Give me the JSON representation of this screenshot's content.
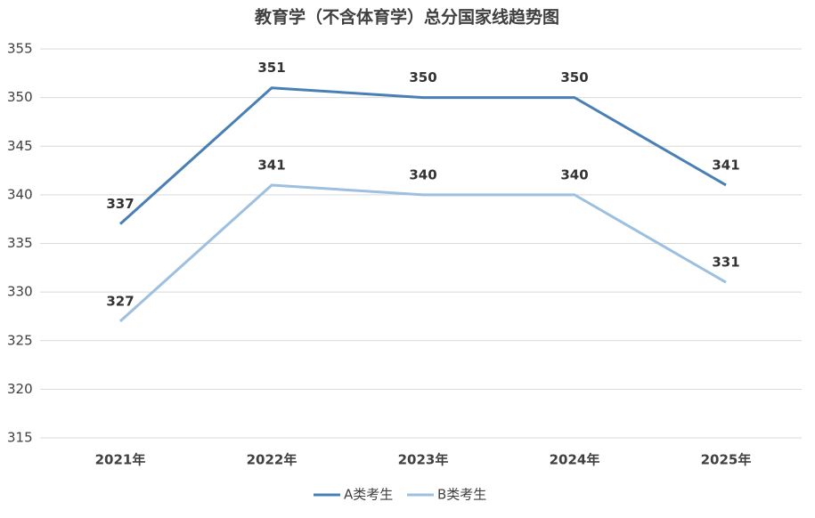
{
  "chart_data": {
    "type": "line",
    "title": "教育学（不含体育学）总分国家线趋势图",
    "categories": [
      "2021年",
      "2022年",
      "2023年",
      "2024年",
      "2025年"
    ],
    "series": [
      {
        "name": "A类考生",
        "color": "#4a7fb5",
        "values": [
          337,
          351,
          350,
          350,
          341
        ]
      },
      {
        "name": "B类考生",
        "color": "#9dbfe0",
        "values": [
          327,
          341,
          340,
          340,
          331
        ]
      }
    ],
    "ylim": [
      315,
      355
    ],
    "yticks": [
      315,
      320,
      325,
      330,
      335,
      340,
      345,
      350,
      355
    ],
    "grid": true,
    "legend": "bottom"
  }
}
